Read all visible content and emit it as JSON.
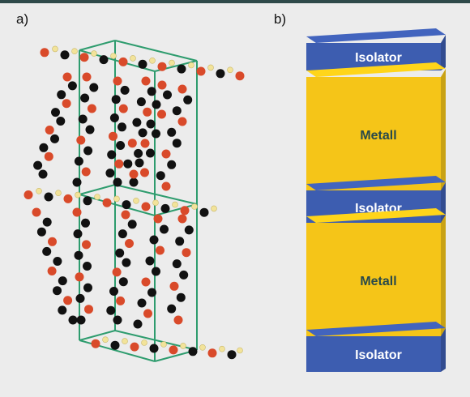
{
  "panels": {
    "a": {
      "label": "a)"
    },
    "b": {
      "label": "b)",
      "layers": [
        {
          "kind": "insulator",
          "label": "Isolator"
        },
        {
          "kind": "metal",
          "label": "Metall"
        },
        {
          "kind": "insulator",
          "label": "Isolator"
        },
        {
          "kind": "metal",
          "label": "Metall"
        },
        {
          "kind": "insulator",
          "label": "Isolator"
        }
      ]
    }
  },
  "colors": {
    "background": "#ececec",
    "top_bar": "#2f4a4a",
    "insulator": "#3d5db0",
    "metal": "#f5c518",
    "unit_cell": "#2e9c6e",
    "atom_red": "#d94a2a",
    "atom_black": "#111111",
    "atom_yellow": "#f2e39a",
    "layer_text_on_blue": "#ffffff",
    "layer_text_on_yellow": "#2a4a4a"
  }
}
